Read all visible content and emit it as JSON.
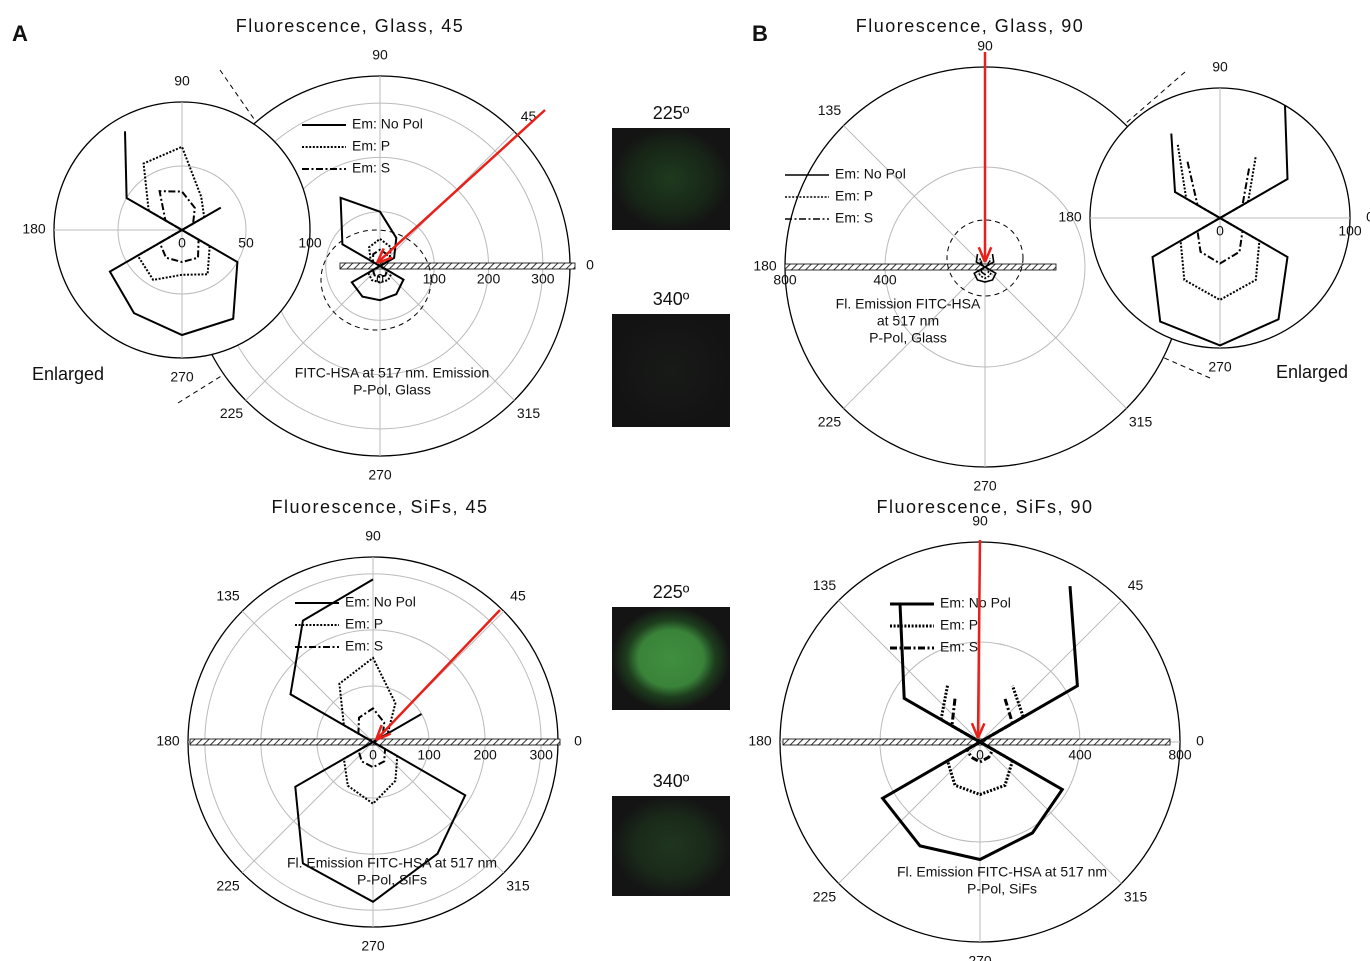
{
  "panels": [
    "A",
    "B"
  ],
  "images": [
    {
      "label": "225º"
    },
    {
      "label": "340º"
    },
    {
      "label": "225º"
    },
    {
      "label": "340º"
    }
  ],
  "chart_data": [
    {
      "type": "polar",
      "title": "Fluorescence, Glass, 45",
      "rlim": [
        0,
        350
      ],
      "rticks": [
        0,
        100,
        200,
        300
      ],
      "thetaticks": [
        0,
        45,
        90,
        225,
        270,
        315
      ],
      "theta": [
        0,
        30,
        60,
        90,
        120,
        150,
        180,
        210,
        240,
        270,
        300,
        330,
        360
      ],
      "annotation": [
        "FITC-HSA at 517 nm. Emission",
        "P-Pol, Glass"
      ],
      "series": [
        {
          "name": "Em: No Pol",
          "color": "#000000",
          "style": "solid",
          "values": [
            0,
            30,
            60,
            100,
            145,
            80,
            0,
            60,
            65,
            63,
            60,
            50,
            0
          ]
        },
        {
          "name": "Em: P",
          "color": "#000000",
          "style": "dotted",
          "values": [
            0,
            20,
            40,
            50,
            40,
            20,
            0,
            25,
            30,
            30,
            30,
            25,
            0
          ]
        },
        {
          "name": "Em: S",
          "color": "#000000",
          "style": "dashdot",
          "values": [
            0,
            15,
            25,
            30,
            25,
            15,
            0,
            15,
            20,
            20,
            20,
            15,
            0
          ]
        }
      ]
    },
    {
      "type": "polar",
      "label": "Enlarged",
      "rlim": [
        0,
        100
      ],
      "rticks": [
        0,
        50,
        100
      ],
      "thetaticks": [
        90,
        180,
        270
      ],
      "theta": [
        0,
        30,
        60,
        90,
        120,
        150,
        180,
        210,
        240,
        270,
        300,
        330,
        360
      ],
      "series": [
        {
          "name": "Em: No Pol",
          "color": "#000000",
          "style": "solid",
          "values": [
            0,
            35,
            null,
            null,
            89,
            50,
            0,
            65,
            75,
            82,
            80,
            50,
            0
          ]
        },
        {
          "name": "Em: P",
          "color": "#000000",
          "style": "dotted",
          "values": [
            0,
            20,
            30,
            65,
            60,
            30,
            0,
            40,
            45,
            35,
            40,
            25,
            0
          ]
        },
        {
          "name": "Em: S",
          "color": "#000000",
          "style": "dashdot",
          "values": [
            0,
            10,
            20,
            30,
            35,
            15,
            0,
            20,
            25,
            25,
            25,
            15,
            0
          ]
        }
      ]
    },
    {
      "type": "polar",
      "title": "Fluorescence, Glass, 90",
      "rlim": [
        0,
        800
      ],
      "rticks": [
        400,
        800
      ],
      "thetaticks": [
        90,
        135,
        180,
        225,
        270,
        315
      ],
      "theta": [
        0,
        30,
        60,
        90,
        120,
        150,
        180,
        210,
        240,
        270,
        300,
        330,
        360
      ],
      "annotation": [
        "Fl. Emission FITC-HSA",
        "at 517 nm",
        "P-Pol, Glass"
      ],
      "series": [
        {
          "name": "Em: No Pol",
          "color": "#000000",
          "style": "solid",
          "values": [
            0,
            40,
            60,
            null,
            60,
            40,
            0,
            50,
            60,
            60,
            60,
            50,
            0
          ]
        },
        {
          "name": "Em: P",
          "color": "#000000",
          "style": "dotted",
          "values": [
            0,
            20,
            40,
            null,
            40,
            20,
            0,
            30,
            40,
            45,
            40,
            30,
            0
          ]
        },
        {
          "name": "Em: S",
          "color": "#000000",
          "style": "dashdot",
          "values": [
            0,
            15,
            30,
            null,
            30,
            15,
            0,
            20,
            25,
            30,
            25,
            20,
            0
          ]
        }
      ]
    },
    {
      "type": "polar",
      "label": "Enlarged",
      "rlim": [
        0,
        100
      ],
      "rticks": [
        0,
        100
      ],
      "thetaticks": [
        0,
        90,
        180,
        270
      ],
      "theta": [
        0,
        30,
        60,
        90,
        120,
        150,
        180,
        210,
        240,
        270,
        300,
        330,
        360
      ],
      "series": [
        {
          "name": "Em: No Pol",
          "color": "#000000",
          "style": "solid",
          "values": [
            0,
            60,
            100,
            null,
            75,
            40,
            0,
            60,
            92,
            98,
            90,
            60,
            0
          ]
        },
        {
          "name": "Em: P",
          "color": "#000000",
          "style": "dotted",
          "values": [
            0,
            25,
            55,
            null,
            65,
            30,
            0,
            35,
            55,
            63,
            55,
            35,
            0
          ]
        },
        {
          "name": "Em: S",
          "color": "#000000",
          "style": "dashdot",
          "values": [
            0,
            20,
            45,
            null,
            50,
            20,
            0,
            20,
            30,
            35,
            30,
            20,
            0
          ]
        }
      ]
    },
    {
      "type": "polar",
      "title": "Fluorescence, SiFs, 45",
      "rlim": [
        0,
        330
      ],
      "rticks": [
        0,
        100,
        200,
        300
      ],
      "thetaticks": [
        0,
        45,
        90,
        135,
        180,
        225,
        270,
        315
      ],
      "theta": [
        0,
        30,
        60,
        90,
        120,
        150,
        180,
        210,
        240,
        270,
        300,
        330,
        360
      ],
      "annotation": [
        "Fl. Emission FITC-HSA at 517 nm",
        "P-Pol, SiFs"
      ],
      "series": [
        {
          "name": "Em: No Pol",
          "color": "#000000",
          "style": "solid",
          "values": [
            0,
            100,
            null,
            290,
            250,
            170,
            0,
            160,
            250,
            285,
            230,
            190,
            0
          ]
        },
        {
          "name": "Em: P",
          "color": "#000000",
          "style": "dotted",
          "values": [
            0,
            30,
            80,
            150,
            120,
            60,
            0,
            60,
            90,
            110,
            80,
            50,
            0
          ]
        },
        {
          "name": "Em: S",
          "color": "#000000",
          "style": "dashdot",
          "values": [
            0,
            20,
            40,
            60,
            50,
            30,
            0,
            30,
            40,
            45,
            40,
            25,
            0
          ]
        }
      ]
    },
    {
      "type": "polar",
      "title": "Fluorescence, SiFs, 90",
      "rlim": [
        0,
        800
      ],
      "rticks": [
        0,
        400,
        800
      ],
      "thetaticks": [
        0,
        45,
        90,
        135,
        180,
        225,
        270,
        315
      ],
      "theta": [
        0,
        30,
        60,
        90,
        120,
        150,
        180,
        210,
        240,
        270,
        300,
        330,
        360
      ],
      "annotation": [
        "Fl. Emission FITC-HSA at 517 nm",
        "P-Pol, SiFs"
      ],
      "series": [
        {
          "name": "Em: No Pol",
          "color": "#000000",
          "style": "solid",
          "values": [
            0,
            450,
            720,
            null,
            640,
            350,
            0,
            450,
            480,
            470,
            420,
            380,
            0
          ]
        },
        {
          "name": "Em: P",
          "color": "#000000",
          "style": "dotted",
          "values": [
            0,
            200,
            260,
            null,
            260,
            180,
            0,
            150,
            200,
            210,
            200,
            150,
            0
          ]
        },
        {
          "name": "Em: S",
          "color": "#000000",
          "style": "dashdot",
          "values": [
            0,
            150,
            200,
            null,
            200,
            130,
            0,
            60,
            70,
            80,
            70,
            60,
            0
          ]
        }
      ]
    }
  ]
}
